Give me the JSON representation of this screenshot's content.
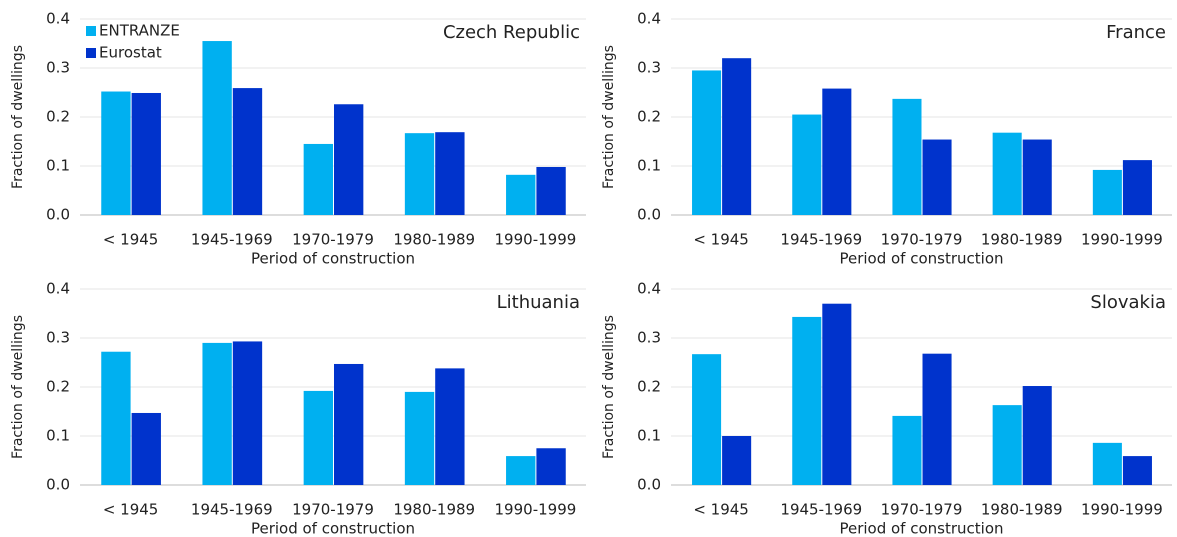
{
  "chart_data": [
    {
      "type": "bar",
      "title": "Czech Republic",
      "xlabel": "Period of construction",
      "ylabel": "Fraction of dwellings",
      "categories": [
        "< 1945",
        "1945-1969",
        "1970-1979",
        "1980-1989",
        "1990-1999"
      ],
      "series": [
        {
          "name": "ENTRANZE",
          "color": "#00b0f0",
          "values": [
            0.252,
            0.355,
            0.145,
            0.167,
            0.082
          ]
        },
        {
          "name": "Eurostat",
          "color": "#0033cc",
          "values": [
            0.249,
            0.259,
            0.226,
            0.169,
            0.098
          ]
        }
      ],
      "ylim": [
        0,
        0.4
      ],
      "yticks": [
        {
          "value": 0,
          "label": "0.0"
        },
        0.1,
        0.2,
        0.3,
        0.4
      ],
      "grid": true,
      "legend": "upper left"
    },
    {
      "type": "bar",
      "title": "France",
      "xlabel": "Period of construction",
      "ylabel": "Fraction of dwellings",
      "categories": [
        "< 1945",
        "1945-1969",
        "1970-1979",
        "1980-1989",
        "1990-1999"
      ],
      "series": [
        {
          "color": "#00b0f0",
          "values": [
            0.295,
            0.205,
            0.237,
            0.168,
            0.092
          ]
        },
        {
          "color": "#0033cc",
          "values": [
            0.32,
            0.258,
            0.154,
            0.154,
            0.112
          ]
        }
      ],
      "ylim": [
        0,
        0.4
      ],
      "yticks": [
        {
          "value": 0,
          "label": "0.0"
        },
        0.1,
        0.2,
        0.3,
        0.4
      ],
      "grid": true
    },
    {
      "type": "bar",
      "title": "Lithuania",
      "xlabel": "Period of construction",
      "ylabel": "Fraction of dwellings",
      "categories": [
        "< 1945",
        "1945-1969",
        "1970-1979",
        "1980-1989",
        "1990-1999"
      ],
      "series": [
        {
          "color": "#00b0f0",
          "values": [
            0.272,
            0.29,
            0.192,
            0.19,
            0.059
          ]
        },
        {
          "color": "#0033cc",
          "values": [
            0.147,
            0.293,
            0.247,
            0.238,
            0.075
          ]
        }
      ],
      "ylim": [
        0,
        0.4
      ],
      "yticks": [
        {
          "value": 0,
          "label": "0.0"
        },
        0.1,
        0.2,
        0.3,
        0.4
      ],
      "grid": true
    },
    {
      "type": "bar",
      "title": "Slovakia",
      "xlabel": "Period of construction",
      "ylabel": "Fraction of dwellings",
      "categories": [
        "< 1945",
        "1945-1969",
        "1970-1979",
        "1980-1989",
        "1990-1999"
      ],
      "series": [
        {
          "color": "#00b0f0",
          "values": [
            0.267,
            0.343,
            0.141,
            0.163,
            0.086
          ]
        },
        {
          "color": "#0033cc",
          "values": [
            0.1,
            0.37,
            0.268,
            0.202,
            0.059
          ]
        }
      ],
      "ylim": [
        0,
        0.4
      ],
      "yticks": [
        {
          "value": 0,
          "label": "0.0"
        },
        0.1,
        0.2,
        0.3,
        0.4
      ],
      "grid": true
    }
  ]
}
